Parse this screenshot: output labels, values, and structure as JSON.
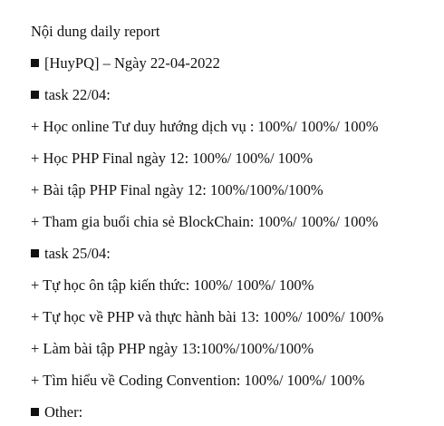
{
  "document": {
    "title": "Nội dung daily report",
    "header": "[HuyPQ] – Ngày 22-04-2022",
    "bullet_icon": "black-square",
    "sections": [
      {
        "heading": "task 22/04:",
        "items": [
          "+ Học online Tư duy hướng dịch vụ : 100%/ 100%/ 100%",
          "+ Học PHP Final ngày 12: 100%/ 100%/ 100%",
          "+ Bài tập PHP Final ngày 12: 100%/100%/100%",
          "+ Tham gia buổi chia sẻ BlockChain: 100%/ 100%/ 100%"
        ]
      },
      {
        "heading": "task 25/04:",
        "items": [
          "+ Tự học ôn tập kiến thức: 100%/ 100%/ 100%",
          "+ Tự học về PHP và thực hành bài 13: 100%/ 100%/ 100%",
          "+ Làm bài tập PHP ngày 13:100%/100%/100%",
          "+ Tìm hiểu về Coding Convention: 100%/ 100%/ 100%"
        ]
      },
      {
        "heading": "Other:",
        "items": []
      }
    ]
  }
}
